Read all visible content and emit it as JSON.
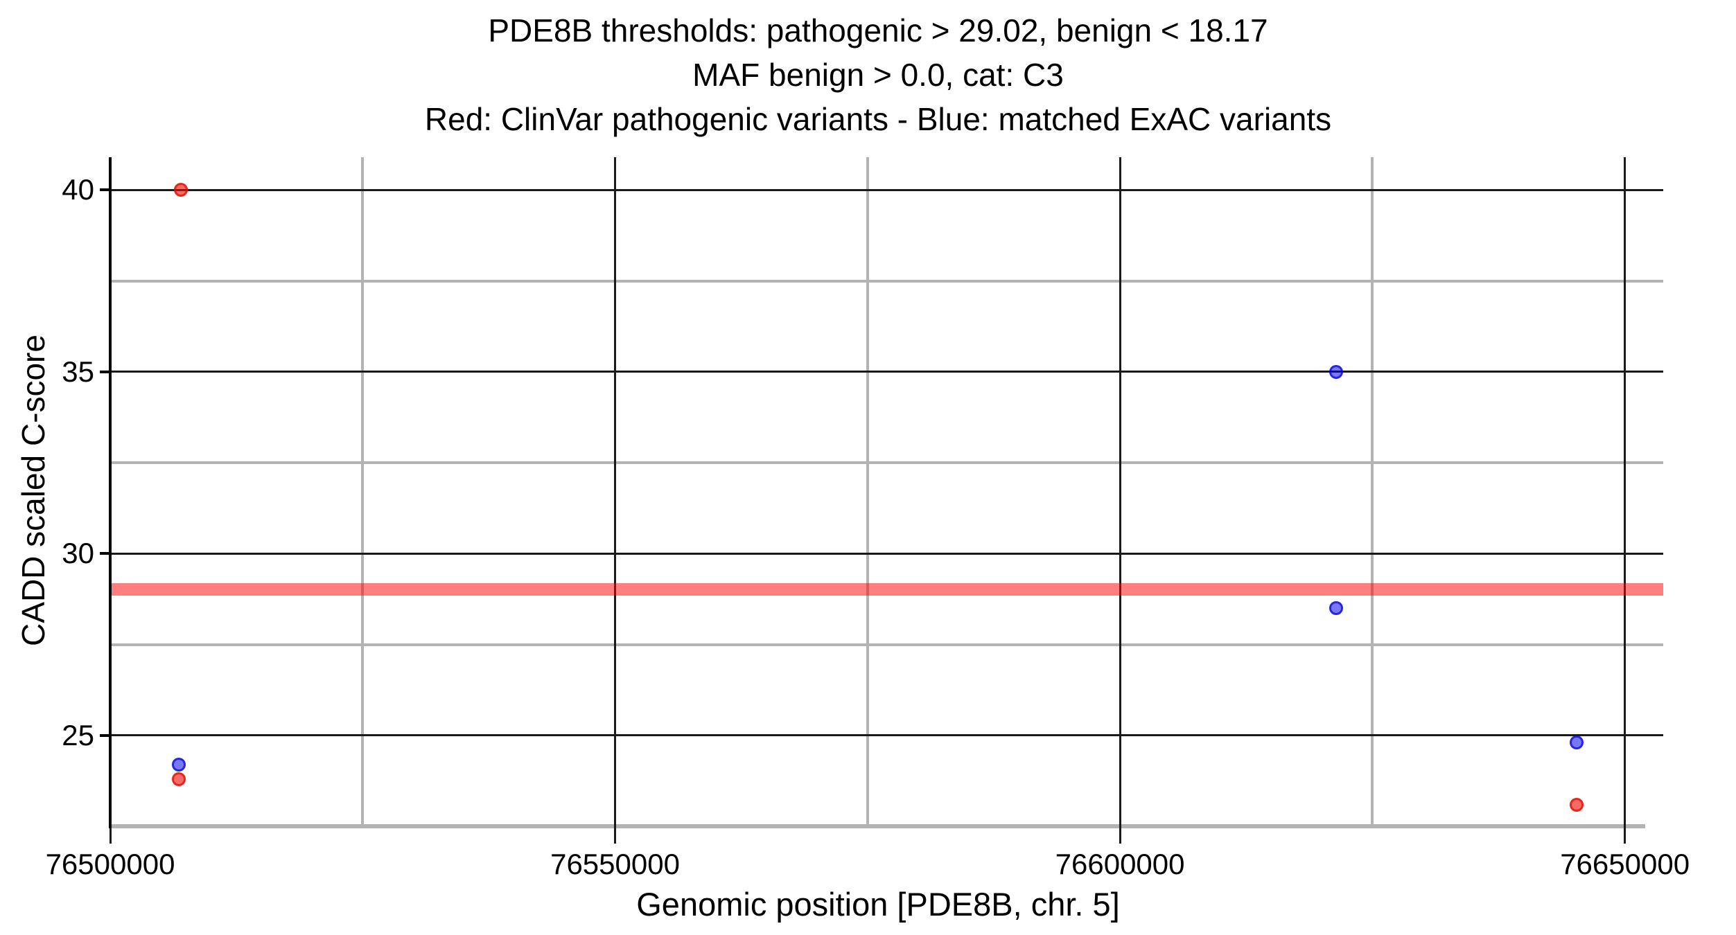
{
  "chart_data": {
    "type": "scatter",
    "title": "PDE8B thresholds: pathogenic > 29.02, benign < 18.17 | MAF benign > 0.0, cat: C3 | Red: ClinVar pathogenic variants - Blue: matched ExAC variants",
    "title_lines": [
      "PDE8B thresholds: pathogenic > 29.02, benign < 18.17",
      "MAF benign > 0.0, cat: C3",
      "Red: ClinVar pathogenic variants - Blue: matched ExAC variants"
    ],
    "xlabel": "Genomic position [PDE8B, chr. 5]",
    "ylabel": "CADD scaled C-score",
    "xlim": [
      76500000,
      76653800
    ],
    "ylim": [
      22.5,
      40.9
    ],
    "x_major_ticks": [
      76500000,
      76550000,
      76600000,
      76650000
    ],
    "x_tick_labels": [
      "76500000",
      "76550000",
      "76600000",
      "76650000"
    ],
    "x_minor_gridlines": [
      76525000,
      76575000,
      76625000
    ],
    "y_major_ticks": [
      40,
      35,
      30,
      25
    ],
    "y_tick_labels": [
      "40",
      "35",
      "30",
      "25"
    ],
    "y_minor_gridlines": [
      37.5,
      32.5,
      27.5
    ],
    "grid": "on",
    "legend_position": "none (encoded in title line 3)",
    "threshold_line": {
      "y": 29.02,
      "meaning": "pathogenic threshold",
      "color": "rgba(255,0,0,0.5)"
    },
    "series": [
      {
        "id": "clinvar-pathogenic",
        "name": "ClinVar pathogenic variants",
        "color_name": "red",
        "fill": "rgba(242,8,0,0.6)",
        "stroke": "rgba(228,8,0,0.72)",
        "points": [
          [
            76507000,
            40.0
          ],
          [
            76506800,
            23.8
          ],
          [
            76645200,
            23.1
          ]
        ]
      },
      {
        "id": "matched-exac",
        "name": "matched ExAC variants",
        "color_name": "blue",
        "fill": "rgba(0,0,230,0.53)",
        "stroke": "rgba(0,0,220,0.69)",
        "points": [
          [
            76506800,
            24.2
          ],
          [
            76621400,
            35.0
          ],
          [
            76621400,
            28.5
          ],
          [
            76645200,
            24.8
          ]
        ]
      }
    ],
    "style": {
      "major_gridline_color": "#1a1a1a",
      "minor_gridline_color": "#b3b3b3",
      "axis_line_color": "#b3b3b3",
      "spine_color": "#000000",
      "text_color": "#000000",
      "background_color": "#ffffff"
    }
  }
}
